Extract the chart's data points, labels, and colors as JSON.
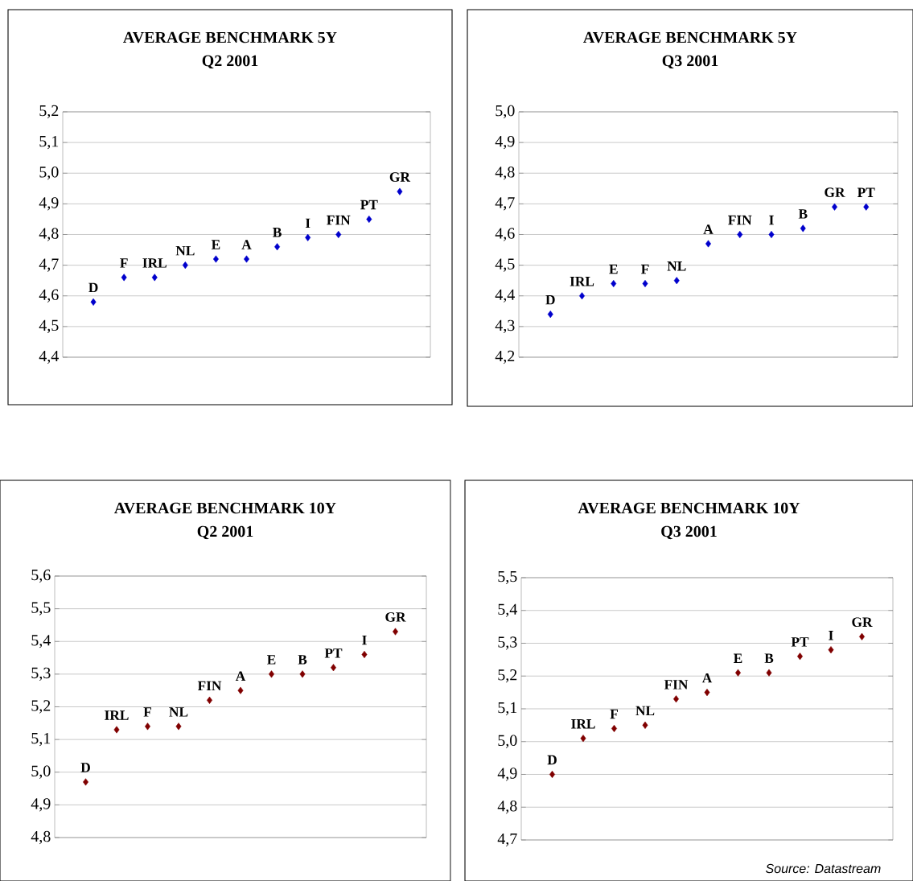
{
  "chart_data": [
    {
      "type": "scatter",
      "title": "AVERAGE BENCHMARK 5Y",
      "subtitle": "Q2 2001",
      "categories": [
        "D",
        "F",
        "IRL",
        "NL",
        "E",
        "A",
        "B",
        "I",
        "FIN",
        "PT",
        "GR"
      ],
      "values": [
        4.58,
        4.66,
        4.66,
        4.7,
        4.72,
        4.72,
        4.76,
        4.79,
        4.8,
        4.85,
        4.94
      ],
      "color": "#0000cc",
      "marker": "diamond",
      "grid": "y",
      "ylim": [
        4.4,
        5.2
      ],
      "yticks": [
        {
          "value": 4.4,
          "label": "4,4"
        },
        {
          "value": 4.5,
          "label": "4,5"
        },
        {
          "value": 4.6,
          "label": "4,6"
        },
        {
          "value": 4.7,
          "label": "4,7"
        },
        {
          "value": 4.8,
          "label": "4,8"
        },
        {
          "value": 4.9,
          "label": "4,9"
        },
        {
          "value": 5.0,
          "label": "5,0"
        },
        {
          "value": 5.1,
          "label": "5,1"
        },
        {
          "value": 5.2,
          "label": "5,2"
        }
      ]
    },
    {
      "type": "scatter",
      "title": "AVERAGE BENCHMARK 5Y",
      "subtitle": "Q3 2001",
      "categories": [
        "D",
        "IRL",
        "E",
        "F",
        "NL",
        "A",
        "FIN",
        "I",
        "B",
        "GR",
        "PT"
      ],
      "values": [
        4.34,
        4.4,
        4.44,
        4.44,
        4.45,
        4.57,
        4.6,
        4.6,
        4.62,
        4.69,
        4.69
      ],
      "color": "#0000cc",
      "marker": "diamond",
      "grid": "y",
      "ylim": [
        4.2,
        5.0
      ],
      "yticks": [
        {
          "value": 4.2,
          "label": "4,2"
        },
        {
          "value": 4.3,
          "label": "4,3"
        },
        {
          "value": 4.4,
          "label": "4,4"
        },
        {
          "value": 4.5,
          "label": "4,5"
        },
        {
          "value": 4.6,
          "label": "4,6"
        },
        {
          "value": 4.7,
          "label": "4,7"
        },
        {
          "value": 4.8,
          "label": "4,8"
        },
        {
          "value": 4.9,
          "label": "4,9"
        },
        {
          "value": 5.0,
          "label": "5,0"
        }
      ]
    },
    {
      "type": "scatter",
      "title": "AVERAGE BENCHMARK 10Y",
      "subtitle": "Q2 2001",
      "categories": [
        "D",
        "IRL",
        "F",
        "NL",
        "FIN",
        "A",
        "E",
        "B",
        "PT",
        "I",
        "GR"
      ],
      "values": [
        4.97,
        5.13,
        5.14,
        5.14,
        5.22,
        5.25,
        5.3,
        5.3,
        5.32,
        5.36,
        5.43
      ],
      "color": "#800000",
      "marker": "diamond",
      "grid": "y",
      "ylim": [
        4.8,
        5.6
      ],
      "yticks": [
        {
          "value": 4.8,
          "label": "4,8"
        },
        {
          "value": 4.9,
          "label": "4,9"
        },
        {
          "value": 5.0,
          "label": "5,0"
        },
        {
          "value": 5.1,
          "label": "5,1"
        },
        {
          "value": 5.2,
          "label": "5,2"
        },
        {
          "value": 5.3,
          "label": "5,3"
        },
        {
          "value": 5.4,
          "label": "5,4"
        },
        {
          "value": 5.5,
          "label": "5,5"
        },
        {
          "value": 5.6,
          "label": "5,6"
        }
      ]
    },
    {
      "type": "scatter",
      "title": "AVERAGE BENCHMARK 10Y",
      "subtitle": "Q3 2001",
      "categories": [
        "D",
        "IRL",
        "F",
        "NL",
        "FIN",
        "A",
        "E",
        "B",
        "PT",
        "I",
        "GR"
      ],
      "values": [
        4.9,
        5.01,
        5.04,
        5.05,
        5.13,
        5.15,
        5.21,
        5.21,
        5.26,
        5.28,
        5.32
      ],
      "color": "#800000",
      "marker": "diamond",
      "grid": "y",
      "ylim": [
        4.7,
        5.5
      ],
      "yticks": [
        {
          "value": 4.7,
          "label": "4,7"
        },
        {
          "value": 4.8,
          "label": "4,8"
        },
        {
          "value": 4.9,
          "label": "4,9"
        },
        {
          "value": 5.0,
          "label": "5,0"
        },
        {
          "value": 5.1,
          "label": "5,1"
        },
        {
          "value": 5.2,
          "label": "5,2"
        },
        {
          "value": 5.3,
          "label": "5,3"
        },
        {
          "value": 5.4,
          "label": "5,4"
        },
        {
          "value": 5.5,
          "label": "5,5"
        }
      ],
      "annotations": [
        "Source: Datastream"
      ]
    }
  ]
}
